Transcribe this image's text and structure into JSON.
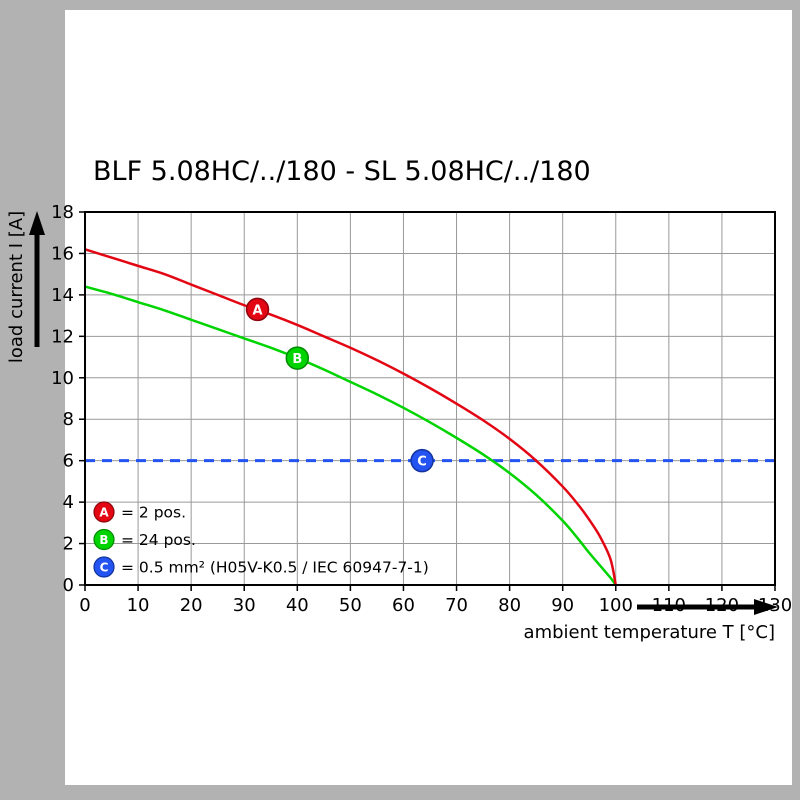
{
  "frame": {
    "background": "#b2b2b2",
    "panel_background": "#ffffff"
  },
  "chart_data": {
    "type": "line",
    "title": "BLF 5.08HC/../180 - SL 5.08HC/../180",
    "xlabel": "ambient temperature T [°C]",
    "ylabel": "load current I [A]",
    "xlim": [
      0,
      130
    ],
    "ylim": [
      0,
      18
    ],
    "xticks": [
      0,
      10,
      20,
      30,
      40,
      50,
      60,
      70,
      80,
      90,
      100,
      110,
      120,
      130
    ],
    "yticks": [
      0,
      2,
      4,
      6,
      8,
      10,
      12,
      14,
      16,
      18
    ],
    "grid": true,
    "grid_color": "#999999",
    "legend_position": "bottom-left-inside",
    "series": [
      {
        "id": "A",
        "legend": "= 2 pos.",
        "color": "#e30613",
        "edge": "#8f040c",
        "width": 2.5,
        "dash": "",
        "marker_pos": [
          32.5,
          13.3
        ],
        "points": [
          [
            0,
            16.2
          ],
          [
            5,
            15.8
          ],
          [
            10,
            15.4
          ],
          [
            15,
            15.0
          ],
          [
            20,
            14.5
          ],
          [
            25,
            14.0
          ],
          [
            30,
            13.5
          ],
          [
            35,
            13.05
          ],
          [
            40,
            12.55
          ],
          [
            45,
            12.0
          ],
          [
            50,
            11.45
          ],
          [
            55,
            10.85
          ],
          [
            60,
            10.2
          ],
          [
            65,
            9.5
          ],
          [
            70,
            8.75
          ],
          [
            75,
            7.95
          ],
          [
            80,
            7.05
          ],
          [
            85,
            6.0
          ],
          [
            90,
            4.75
          ],
          [
            93,
            3.85
          ],
          [
            95,
            3.15
          ],
          [
            97,
            2.35
          ],
          [
            99,
            1.25
          ],
          [
            100,
            0
          ]
        ]
      },
      {
        "id": "B",
        "legend": "= 24 pos.",
        "color": "#00d400",
        "edge": "#008a00",
        "width": 2.5,
        "dash": "",
        "marker_pos": [
          40,
          10.95
        ],
        "points": [
          [
            0,
            14.4
          ],
          [
            5,
            14.05
          ],
          [
            10,
            13.65
          ],
          [
            15,
            13.25
          ],
          [
            20,
            12.8
          ],
          [
            25,
            12.35
          ],
          [
            30,
            11.9
          ],
          [
            35,
            11.45
          ],
          [
            40,
            10.95
          ],
          [
            45,
            10.4
          ],
          [
            50,
            9.8
          ],
          [
            55,
            9.2
          ],
          [
            60,
            8.55
          ],
          [
            65,
            7.85
          ],
          [
            70,
            7.1
          ],
          [
            75,
            6.3
          ],
          [
            80,
            5.4
          ],
          [
            85,
            4.35
          ],
          [
            90,
            3.1
          ],
          [
            93,
            2.2
          ],
          [
            95,
            1.55
          ],
          [
            97,
            0.95
          ],
          [
            99,
            0.35
          ],
          [
            100,
            0
          ]
        ]
      },
      {
        "id": "C",
        "legend": "= 0.5 mm² (H05V-K0.5 / IEC 60947-7-1)",
        "color": "#2353f0",
        "edge": "#12339e",
        "width": 3,
        "dash": "10 7",
        "marker_pos": [
          63.5,
          6
        ],
        "points": [
          [
            0,
            6
          ],
          [
            130,
            6
          ]
        ]
      }
    ]
  }
}
